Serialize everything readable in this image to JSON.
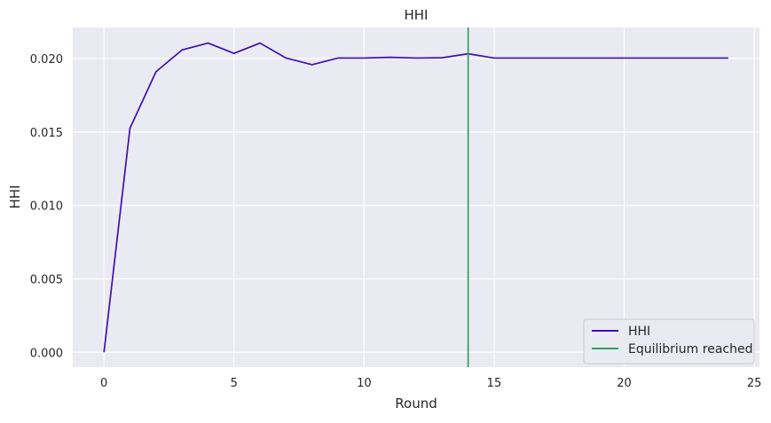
{
  "chart_data": {
    "type": "line",
    "title": "HHI",
    "xlabel": "Round",
    "ylabel": "HHI",
    "xlim": [
      -1.2,
      25.2
    ],
    "ylim": [
      -0.00101,
      0.02211
    ],
    "x_ticks": [
      0,
      5,
      10,
      15,
      20,
      25
    ],
    "y_ticks": [
      0.0,
      0.005,
      0.01,
      0.015,
      0.02
    ],
    "x_tick_labels": [
      "0",
      "5",
      "10",
      "15",
      "20",
      "25"
    ],
    "y_tick_labels": [
      "0.000",
      "0.005",
      "0.010",
      "0.015",
      "0.020"
    ],
    "grid": true,
    "legend_position": "lower-right",
    "background_color": "#eaeaf2",
    "series": [
      {
        "name": "HHI",
        "color": "#3f0fae",
        "x": [
          0,
          1,
          2,
          3,
          4,
          5,
          6,
          7,
          8,
          9,
          10,
          11,
          12,
          13,
          14,
          15,
          16,
          17,
          18,
          19,
          20,
          21,
          22,
          23,
          24
        ],
        "y": [
          0.0,
          0.01525,
          0.0191,
          0.02058,
          0.02105,
          0.02035,
          0.02105,
          0.02003,
          0.01958,
          0.02003,
          0.02003,
          0.02008,
          0.02003,
          0.02005,
          0.02032,
          0.02003,
          0.02003,
          0.02003,
          0.02003,
          0.02003,
          0.02003,
          0.02003,
          0.02003,
          0.02003,
          0.02003
        ]
      }
    ],
    "vlines": [
      {
        "name": "Equilibrium reached",
        "x": 14,
        "color": "#2ca25f"
      }
    ]
  }
}
